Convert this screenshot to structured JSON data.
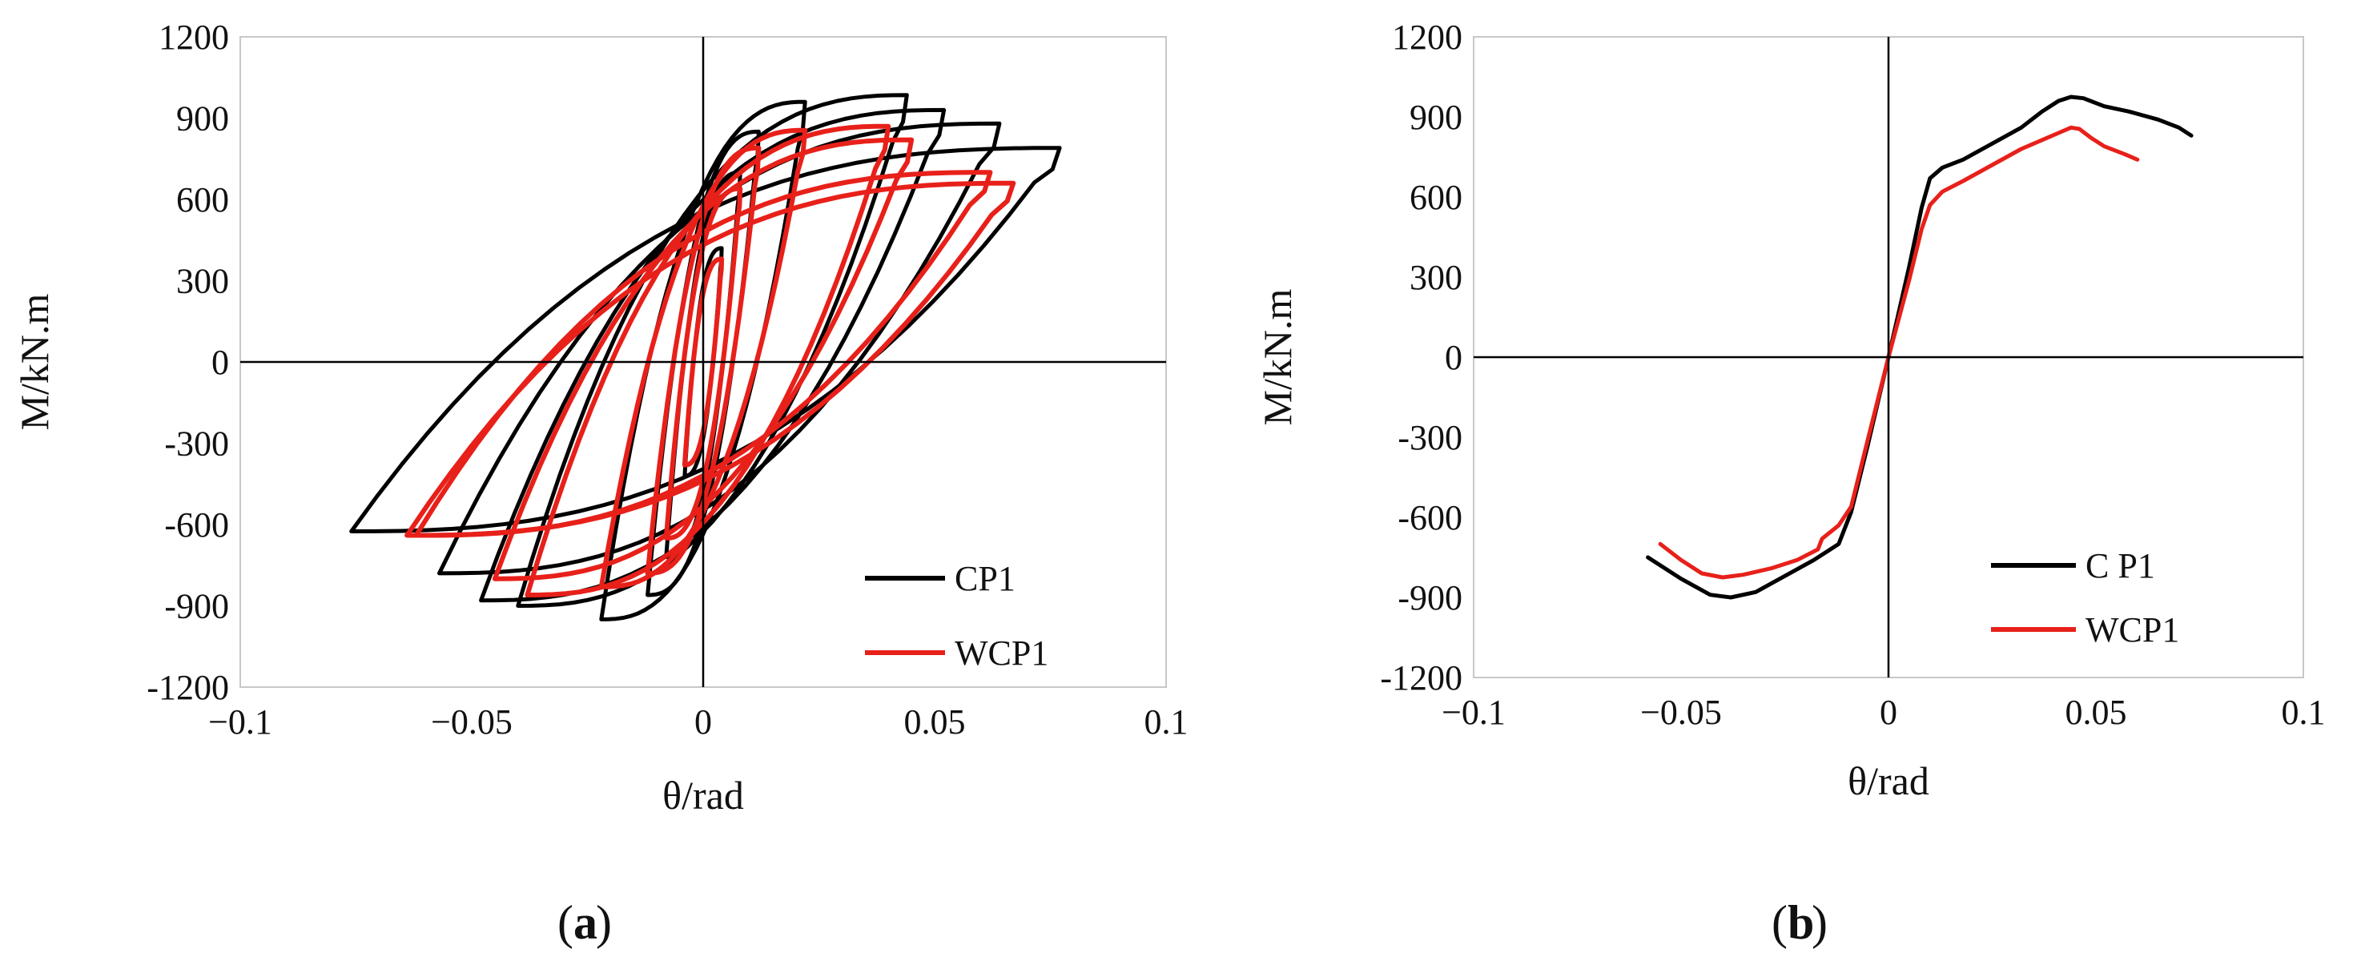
{
  "subfigures": [
    {
      "open": "(",
      "letter": "a",
      "close": ")"
    },
    {
      "open": "(",
      "letter": "b",
      "close": ")"
    }
  ],
  "chart_data": [
    {
      "type": "line",
      "xlabel": "θ/rad",
      "ylabel": "M/kN.m",
      "xlim": [
        -0.1,
        0.1
      ],
      "ylim": [
        -1200,
        1200
      ],
      "xticks": [
        -0.1,
        -0.05,
        0,
        0.05,
        0.1
      ],
      "xtick_labels": [
        "−0.1",
        "−0.05",
        "0",
        "0.05",
        "0.1"
      ],
      "yticks": [
        1200,
        900,
        600,
        300,
        0,
        -300,
        -600,
        -900,
        -1200
      ],
      "ytick_labels": [
        "1200",
        "900",
        "600",
        "300",
        "0",
        "-300",
        "-600",
        "-900",
        "-1200"
      ],
      "grid": false,
      "legend_position": "bottom-right",
      "series": [
        {
          "name": "CP1",
          "color": "#000000",
          "cycles": [
            {
              "amp_pos": 0.004,
              "amp_neg": -0.004,
              "m_pos": 420,
              "m_neg": -420
            },
            {
              "amp_pos": 0.008,
              "amp_neg": -0.008,
              "m_pos": 700,
              "m_neg": -720
            },
            {
              "amp_pos": 0.012,
              "amp_neg": -0.012,
              "m_pos": 850,
              "m_neg": -860
            },
            {
              "amp_pos": 0.022,
              "amp_neg": -0.022,
              "m_pos": 960,
              "m_neg": -950
            },
            {
              "amp_pos": 0.044,
              "amp_neg": -0.04,
              "m_pos": 985,
              "m_neg": -900
            },
            {
              "amp_pos": 0.052,
              "amp_neg": -0.048,
              "m_pos": 930,
              "m_neg": -880
            },
            {
              "amp_pos": 0.064,
              "amp_neg": -0.057,
              "m_pos": 880,
              "m_neg": -780
            },
            {
              "amp_pos": 0.077,
              "amp_neg": -0.076,
              "m_pos": 790,
              "m_neg": -625
            }
          ]
        },
        {
          "name": "WCP1",
          "color": "#e8201a",
          "cycles": [
            {
              "amp_pos": 0.004,
              "amp_neg": -0.004,
              "m_pos": 380,
              "m_neg": -380
            },
            {
              "amp_pos": 0.008,
              "amp_neg": -0.008,
              "m_pos": 640,
              "m_neg": -650
            },
            {
              "amp_pos": 0.012,
              "amp_neg": -0.012,
              "m_pos": 790,
              "m_neg": -780
            },
            {
              "amp_pos": 0.022,
              "amp_neg": -0.022,
              "m_pos": 855,
              "m_neg": -830
            },
            {
              "amp_pos": 0.04,
              "amp_neg": -0.038,
              "m_pos": 870,
              "m_neg": -860
            },
            {
              "amp_pos": 0.045,
              "amp_neg": -0.045,
              "m_pos": 820,
              "m_neg": -800
            },
            {
              "amp_pos": 0.062,
              "amp_neg": -0.062,
              "m_pos": 700,
              "m_neg": -640
            },
            {
              "amp_pos": 0.067,
              "amp_neg": -0.064,
              "m_pos": 660,
              "m_neg": -640
            }
          ]
        }
      ]
    },
    {
      "type": "line",
      "xlabel": "θ/rad",
      "ylabel": "M/kN.m",
      "xlim": [
        -0.1,
        0.1
      ],
      "ylim": [
        -1200,
        1200
      ],
      "xticks": [
        -0.1,
        -0.05,
        0,
        0.05,
        0.1
      ],
      "xtick_labels": [
        "−0.1",
        "−0.05",
        "0",
        "0.05",
        "0.1"
      ],
      "yticks": [
        1200,
        900,
        600,
        300,
        0,
        -300,
        -600,
        -900,
        -1200
      ],
      "ytick_labels": [
        "1200",
        "900",
        "600",
        "300",
        "0",
        "-300",
        "-600",
        "-900",
        "-1200"
      ],
      "grid": false,
      "legend_position": "bottom-right",
      "series": [
        {
          "name": "C P1",
          "color": "#000000",
          "x": [
            -0.058,
            -0.05,
            -0.043,
            -0.038,
            -0.032,
            -0.025,
            -0.018,
            -0.012,
            -0.009,
            -0.005,
            0,
            0.005,
            0.008,
            0.01,
            0.013,
            0.018,
            0.025,
            0.032,
            0.037,
            0.041,
            0.044,
            0.047,
            0.052,
            0.058,
            0.065,
            0.07,
            0.073
          ],
          "y": [
            -750,
            -830,
            -890,
            -900,
            -880,
            -820,
            -760,
            -700,
            -580,
            -330,
            0,
            340,
            560,
            670,
            710,
            740,
            800,
            860,
            920,
            960,
            975,
            970,
            940,
            920,
            890,
            860,
            830
          ]
        },
        {
          "name": "WCP1",
          "color": "#e8201a",
          "x": [
            -0.055,
            -0.05,
            -0.045,
            -0.04,
            -0.035,
            -0.028,
            -0.022,
            -0.017,
            -0.016,
            -0.012,
            -0.009,
            -0.005,
            0,
            0.005,
            0.008,
            0.01,
            0.013,
            0.018,
            0.025,
            0.032,
            0.038,
            0.041,
            0.044,
            0.046,
            0.049,
            0.052,
            0.057,
            0.06
          ],
          "y": [
            -700,
            -760,
            -810,
            -825,
            -815,
            -790,
            -760,
            -720,
            -680,
            -630,
            -560,
            -310,
            0,
            290,
            480,
            570,
            620,
            660,
            720,
            780,
            820,
            840,
            860,
            855,
            820,
            790,
            760,
            740
          ]
        }
      ]
    }
  ]
}
